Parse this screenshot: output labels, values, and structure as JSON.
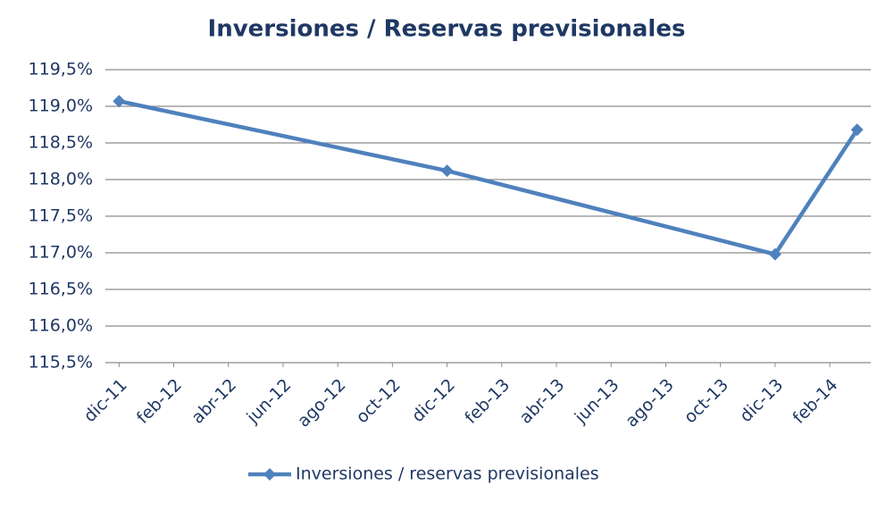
{
  "chart_data": {
    "type": "line",
    "title": "Inversiones / Reservas previsionales",
    "x": [
      0,
      12,
      24,
      27
    ],
    "series": [
      {
        "name": "Inversiones / reservas previsionales",
        "color": "#4f81bd",
        "values": [
          119.07,
          118.12,
          116.98,
          118.68
        ]
      }
    ],
    "xlim": [
      -0.5,
      27.5
    ],
    "xticks": [
      {
        "value": 0,
        "label": "dic-11"
      },
      {
        "value": 2,
        "label": "feb-12"
      },
      {
        "value": 4,
        "label": "abr-12"
      },
      {
        "value": 6,
        "label": "jun-12"
      },
      {
        "value": 8,
        "label": "ago-12"
      },
      {
        "value": 10,
        "label": "oct-12"
      },
      {
        "value": 12,
        "label": "dic-12"
      },
      {
        "value": 14,
        "label": "feb-13"
      },
      {
        "value": 16,
        "label": "abr-13"
      },
      {
        "value": 18,
        "label": "jun-13"
      },
      {
        "value": 20,
        "label": "ago-13"
      },
      {
        "value": 22,
        "label": "oct-13"
      },
      {
        "value": 24,
        "label": "dic-13"
      },
      {
        "value": 26,
        "label": "feb-14"
      }
    ],
    "ylim": [
      115.5,
      119.5
    ],
    "yticks": [
      {
        "value": 115.5,
        "label": "115,5%"
      },
      {
        "value": 116,
        "label": "116,0%"
      },
      {
        "value": 116.5,
        "label": "116,5%"
      },
      {
        "value": 117,
        "label": "117,0%"
      },
      {
        "value": 117.5,
        "label": "117,5%"
      },
      {
        "value": 118,
        "label": "118,0%"
      },
      {
        "value": 118.5,
        "label": "118,5%"
      },
      {
        "value": 119,
        "label": "119,0%"
      },
      {
        "value": 119.5,
        "label": "119,5%"
      }
    ],
    "grid": true,
    "legend": "bottom"
  }
}
